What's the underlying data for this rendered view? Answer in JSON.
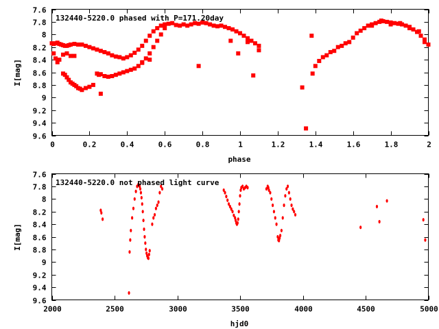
{
  "chart_data": [
    {
      "type": "scatter",
      "title": "132440-5220.0 phased with P=171.20day",
      "xlabel": "phase",
      "ylabel": "I[mag]",
      "xlim": [
        0,
        2
      ],
      "ylim": [
        7.6,
        9.6
      ],
      "y_inverted": true,
      "grid": false,
      "marker_color": "#ff0000",
      "xticks": [
        "0",
        "0.2",
        "0.4",
        "0.6",
        "0.8",
        "1",
        "1.2",
        "1.4",
        "1.6",
        "1.8",
        "2"
      ],
      "yticks": [
        "7.6",
        "7.8",
        "8",
        "8.2",
        "8.4",
        "8.6",
        "8.8",
        "9",
        "9.2",
        "9.4",
        "9.6"
      ],
      "series": [
        {
          "x": [
            0.0,
            0.01,
            0.02,
            0.03,
            0.04,
            0.05,
            0.06,
            0.07,
            0.08,
            0.09,
            0.1,
            0.12,
            0.14,
            0.16,
            0.18,
            0.2,
            0.22,
            0.24,
            0.26,
            0.28,
            0.3,
            0.32,
            0.34,
            0.36,
            0.38,
            0.4,
            0.42,
            0.44,
            0.46,
            0.48,
            0.5,
            0.52,
            0.54,
            0.56,
            0.58,
            0.6,
            0.62,
            0.64,
            0.06,
            0.07,
            0.08,
            0.09,
            0.1,
            0.11,
            0.12,
            0.13,
            0.14,
            0.15,
            0.16,
            0.18,
            0.2,
            0.22,
            0.01,
            0.02,
            0.03,
            0.04,
            0.06,
            0.08,
            0.1,
            0.12,
            0.24,
            0.25,
            0.26,
            0.28,
            0.3,
            0.32,
            0.34,
            0.36,
            0.38,
            0.4,
            0.42,
            0.44,
            0.46,
            0.48,
            0.5,
            0.52,
            0.54,
            0.56,
            0.58,
            0.6,
            0.66,
            0.68,
            0.7,
            0.72,
            0.74,
            0.76,
            0.78,
            0.8,
            0.82,
            0.84,
            0.86,
            0.88,
            0.9,
            0.92,
            0.94,
            0.96,
            0.98,
            1.0,
            1.02,
            1.04,
            1.06,
            1.08,
            1.1,
            0.26,
            0.78,
            1.07,
            1.33,
            1.35,
            1.38,
            1.385,
            1.4,
            1.42,
            1.44,
            1.46,
            1.48,
            1.5,
            1.52,
            1.54,
            1.56,
            1.58,
            1.6,
            1.62,
            1.64,
            1.66,
            1.68,
            1.7,
            1.72,
            1.74,
            1.76,
            1.78,
            1.8,
            1.82,
            1.84,
            1.86,
            1.88,
            1.9,
            1.92,
            1.94,
            1.96,
            1.98,
            2.0,
            1.7,
            1.75,
            1.8,
            1.85,
            1.9,
            1.95,
            1.98,
            1.1,
            0.95,
            0.99,
            1.04,
            0.52,
            0.48
          ],
          "y": [
            8.14,
            8.15,
            8.14,
            8.13,
            8.15,
            8.16,
            8.17,
            8.18,
            8.18,
            8.17,
            8.16,
            8.15,
            8.16,
            8.16,
            8.18,
            8.2,
            8.22,
            8.24,
            8.26,
            8.28,
            8.3,
            8.33,
            8.35,
            8.36,
            8.38,
            8.36,
            8.33,
            8.29,
            8.24,
            8.18,
            8.1,
            8.02,
            7.95,
            7.9,
            7.86,
            7.84,
            7.83,
            7.82,
            8.62,
            8.64,
            8.68,
            8.72,
            8.76,
            8.78,
            8.8,
            8.82,
            8.85,
            8.86,
            8.88,
            8.85,
            8.83,
            8.8,
            8.3,
            8.38,
            8.44,
            8.4,
            8.32,
            8.3,
            8.34,
            8.34,
            8.62,
            8.64,
            8.63,
            8.66,
            8.67,
            8.66,
            8.64,
            8.62,
            8.6,
            8.58,
            8.56,
            8.54,
            8.5,
            8.44,
            8.38,
            8.3,
            8.2,
            8.1,
            8.0,
            7.9,
            7.85,
            7.86,
            7.84,
            7.86,
            7.84,
            7.82,
            7.83,
            7.81,
            7.82,
            7.84,
            7.86,
            7.87,
            7.86,
            7.88,
            7.9,
            7.92,
            7.95,
            7.98,
            8.02,
            8.06,
            8.1,
            8.14,
            8.18,
            8.94,
            8.5,
            8.65,
            8.84,
            9.49,
            8.02,
            8.62,
            8.5,
            8.42,
            8.36,
            8.33,
            8.28,
            8.26,
            8.2,
            8.18,
            8.14,
            8.12,
            8.05,
            7.98,
            7.94,
            7.9,
            7.86,
            7.84,
            7.82,
            7.8,
            7.79,
            7.8,
            7.81,
            7.82,
            7.83,
            7.84,
            7.86,
            7.88,
            7.92,
            7.96,
            8.02,
            8.08,
            8.16,
            7.86,
            7.78,
            7.84,
            7.82,
            7.9,
            7.95,
            8.12,
            8.25,
            8.1,
            8.3,
            8.12,
            8.4,
            8.45
          ]
        }
      ]
    },
    {
      "type": "scatter",
      "title": "132440-5220.0 not phased light curve",
      "xlabel": "hjd0",
      "ylabel": "I[mag]",
      "xlim": [
        2000,
        5000
      ],
      "ylim": [
        7.6,
        9.6
      ],
      "y_inverted": true,
      "grid": false,
      "marker_color": "#ff0000",
      "xticks": [
        "2000",
        "2500",
        "3000",
        "3500",
        "4000",
        "4500",
        "5000"
      ],
      "yticks": [
        "7.6",
        "7.8",
        "8",
        "8.2",
        "8.4",
        "8.6",
        "8.8",
        "9",
        "9.2",
        "9.4",
        "9.6"
      ],
      "series": [
        {
          "x": [
            2390,
            2395,
            2405,
            2620,
            2625,
            2630,
            2640,
            2650,
            2660,
            2670,
            2680,
            2690,
            2695,
            2700,
            2705,
            2710,
            2715,
            2720,
            2725,
            2730,
            2735,
            2740,
            2745,
            2750,
            2755,
            2760,
            2765,
            2770,
            2775,
            2780,
            2615,
            2800,
            2810,
            2820,
            2830,
            2840,
            2850,
            2860,
            2870,
            2880,
            3370,
            3380,
            3390,
            3400,
            3410,
            3420,
            3430,
            3440,
            3450,
            3460,
            3465,
            3470,
            3475,
            3480,
            3485,
            3490,
            3495,
            3500,
            3505,
            3510,
            3520,
            3530,
            3540,
            3550,
            3560,
            3710,
            3720,
            3725,
            3730,
            3740,
            3750,
            3760,
            3770,
            3780,
            3790,
            3800,
            3805,
            3810,
            3815,
            3820,
            3830,
            3840,
            3850,
            3860,
            3870,
            3880,
            3890,
            3900,
            3910,
            3920,
            3930,
            3940,
            4460,
            4590,
            4610,
            4670,
            4960,
            4975
          ],
          "y": [
            8.18,
            8.22,
            8.32,
            8.84,
            8.65,
            8.5,
            8.3,
            8.15,
            8.0,
            7.88,
            7.8,
            7.77,
            7.78,
            7.8,
            7.84,
            7.9,
            7.98,
            8.08,
            8.2,
            8.34,
            8.48,
            8.6,
            8.7,
            8.8,
            8.86,
            8.9,
            8.93,
            8.94,
            8.88,
            8.82,
            9.49,
            8.4,
            8.3,
            8.25,
            8.15,
            8.1,
            8.05,
            7.9,
            7.8,
            7.84,
            7.86,
            7.9,
            7.96,
            8.02,
            8.08,
            8.12,
            8.16,
            8.2,
            8.26,
            8.3,
            8.34,
            8.38,
            8.4,
            8.38,
            8.32,
            8.2,
            8.08,
            7.95,
            7.86,
            7.82,
            7.8,
            7.84,
            7.82,
            7.8,
            7.82,
            7.84,
            7.8,
            7.82,
            7.86,
            7.9,
            8.0,
            8.1,
            8.2,
            8.3,
            8.4,
            8.6,
            8.65,
            8.66,
            8.62,
            8.58,
            8.5,
            8.3,
            8.1,
            7.95,
            7.84,
            7.8,
            7.9,
            8.0,
            8.1,
            8.16,
            8.2,
            8.25,
            8.45,
            8.12,
            8.36,
            8.03,
            8.33,
            8.65
          ]
        }
      ]
    }
  ]
}
